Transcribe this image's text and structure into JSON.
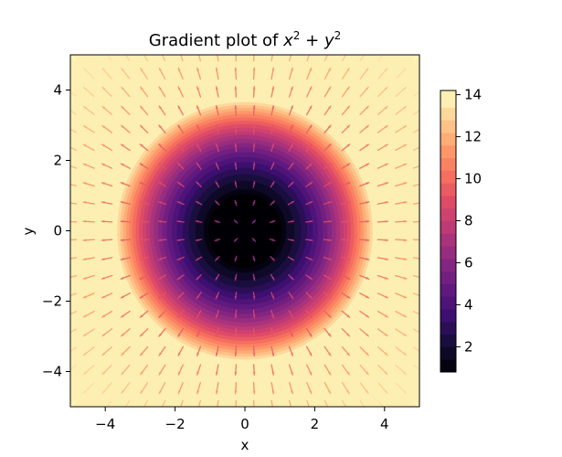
{
  "chart_data": {
    "type": "heatmap",
    "title_text": "Gradient plot of ",
    "title_expr": [
      {
        "t": "x",
        "italic": true
      },
      {
        "t": "2",
        "sup": true
      },
      {
        "t": " + ",
        "italic": false
      },
      {
        "t": "y",
        "italic": true
      },
      {
        "t": "2",
        "sup": true
      }
    ],
    "function": "x^2 + y^2",
    "xlabel": "x",
    "ylabel": "y",
    "xlim": [
      -5,
      5
    ],
    "ylim": [
      -5,
      5
    ],
    "x_ticks": [
      -4,
      -2,
      0,
      2,
      4
    ],
    "y_ticks": [
      -4,
      -2,
      0,
      2,
      4
    ],
    "x_tick_labels": [
      "−4",
      "−2",
      "0",
      "2",
      "4"
    ],
    "y_tick_labels": [
      "−4",
      "−2",
      "0",
      "2",
      "4"
    ],
    "colormap": "magma",
    "colorbar": {
      "range": [
        0.8,
        14.2
      ],
      "ticks": [
        2,
        4,
        6,
        8,
        10,
        12,
        14
      ],
      "tick_labels": [
        "2",
        "4",
        "6",
        "8",
        "10",
        "12",
        "14"
      ]
    },
    "contour_levels": [
      0.8,
      1.4,
      2.0,
      2.6,
      3.2,
      3.8,
      4.4,
      5.0,
      5.6,
      6.2,
      6.8,
      7.4,
      8.0,
      8.6,
      9.2,
      9.8,
      10.4,
      11.0,
      11.6,
      12.2,
      12.8,
      13.4,
      14.2
    ],
    "quiver": {
      "grid": [
        -5,
        -4.47,
        -3.95,
        -3.42,
        -2.89,
        -2.37,
        -1.84,
        -1.32,
        -0.79,
        -0.26,
        0.26,
        0.79,
        1.32,
        1.84,
        2.37,
        2.89,
        3.42,
        3.95,
        4.47,
        5
      ],
      "vector_field": "gradient magnitude of sqrt(x^2 + y^2)",
      "coloring": "magma by arrow length"
    }
  }
}
